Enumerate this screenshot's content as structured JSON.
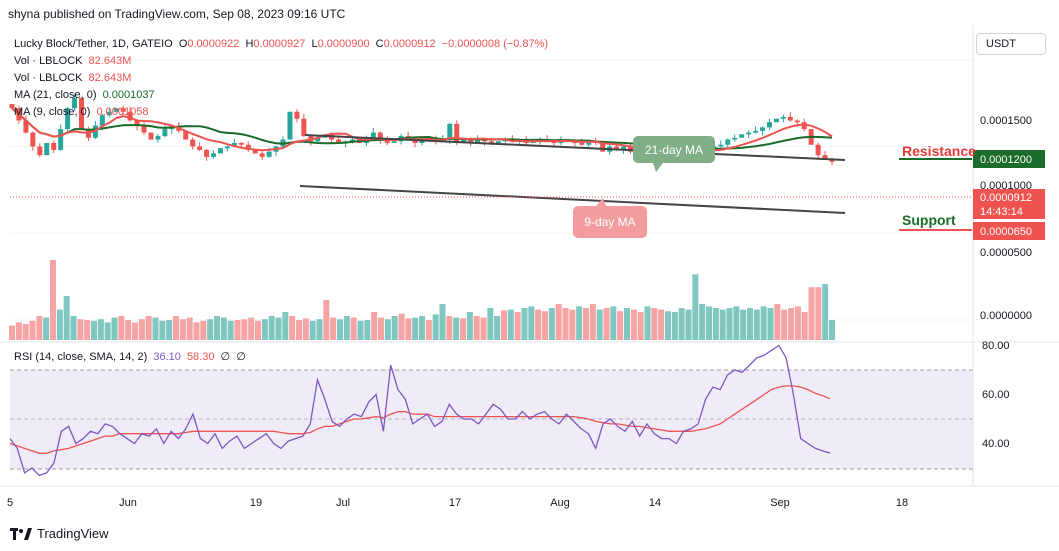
{
  "header": {
    "published": "shyna published on TradingView.com, Sep 08, 2023 09:16 UTC"
  },
  "legend": {
    "symbol": "Lucky Block/Tether, 1D, GATEIO",
    "ohlc": {
      "o_label": "O",
      "o": "0.0000922",
      "h_label": "H",
      "h": "0.0000927",
      "l_label": "L",
      "l": "0.0000900",
      "c_label": "C",
      "c": "0.0000912",
      "change": "−0.0000008 (−0.87%)"
    },
    "vol1": {
      "label": "Vol · LBLOCK",
      "value": "82.643M"
    },
    "vol2": {
      "label": "Vol · LBLOCK",
      "value": "82.643M"
    },
    "ma21": {
      "label": "MA (21, close, 0)",
      "value": "0.0001037"
    },
    "ma9": {
      "label": "MA (9, close, 0)",
      "value": "0.0001058"
    }
  },
  "currency": "USDT",
  "price_axis": [
    "0.0001500",
    "0.0001000",
    "0.0000500",
    "0.0000000"
  ],
  "rsi_axis": [
    "80.00",
    "60.00",
    "40.00"
  ],
  "rsi_legend": {
    "label": "RSI (14, close, SMA, 14, 2)",
    "rsi": "36.10",
    "sma": "58.30",
    "extra1": "∅",
    "extra2": "∅"
  },
  "badges": {
    "resistance_price": "0.0001200",
    "current_price": "0.0000912",
    "countdown": "14:43:14",
    "support_price": "0.0000650"
  },
  "annotations": {
    "resistance": "Resistance",
    "support": "Support",
    "ma21_note": "21-day MA",
    "ma9_note": "9-day MA"
  },
  "x_axis": [
    "5",
    "Jun",
    "19",
    "Jul",
    "17",
    "Aug",
    "14",
    "Sep",
    "18"
  ],
  "footer": {
    "brand": "TradingView"
  },
  "colors": {
    "up": "#26a69a",
    "down": "#ef5350",
    "ma21": "#1b6b2a",
    "ma9": "#ef5350",
    "rsi": "#7e57c2",
    "rsi_sma": "#ef5350",
    "channel": "#555555"
  },
  "chart_data": [
    {
      "type": "candlestick",
      "title": "Lucky Block/Tether, 1D, GATEIO",
      "ylim": [
        0,
        0.00017
      ],
      "x_range": [
        "2023-05-25",
        "2023-10-01"
      ],
      "series": [
        {
          "name": "MA (21, close, 0)",
          "last": 0.0001037
        },
        {
          "name": "MA (9, close, 0)",
          "last": 0.0001058
        }
      ],
      "levels": {
        "resistance": 0.00012,
        "support": 6.5e-05,
        "last": 9.12e-05
      },
      "closes": [
        0.000122,
        0.000115,
        0.000108,
        0.0001,
        9.5e-05,
        0.000102,
        9.8e-05,
        0.00011,
        0.000122,
        0.000128,
        0.00011,
        0.000105,
        0.000112,
        0.000118,
        0.00012,
        0.000122,
        0.00012,
        0.000115,
        0.000112,
        0.000108,
        0.000104,
        0.000106,
        0.00011,
        0.000112,
        0.000109,
        0.000104,
        0.0001,
        9.8e-05,
        9.4e-05,
        9.6e-05,
        9.9e-05,
        0.0001,
        0.000102,
        0.000101,
        9.8e-05,
        9.6e-05,
        9.4e-05,
        9.7e-05,
        0.0001,
        0.000104,
        0.00012,
        0.000116,
        0.000106,
        0.000103,
        0.000105,
        0.000107,
        0.000104,
        0.000102,
        0.000103,
        0.000104,
        0.000102,
        0.000105,
        0.000108,
        0.000104,
        0.000102,
        0.000103,
        0.000106,
        0.000104,
        0.000102,
        0.000104,
        0.000105,
        0.000103,
        0.000104,
        0.000113,
        0.000102,
        0.000104,
        0.000102,
        0.000104,
        0.000103,
        0.000102,
        0.000103,
        0.000104,
        0.000103,
        0.000104,
        0.000102,
        0.000103,
        0.000104,
        0.000103,
        0.000102,
        0.000104,
        0.000103,
        0.000102,
        0.000101,
        0.000103,
        0.000102,
        9.7e-05,
        0.0001,
        9.8e-05,
        0.0001,
        9.7e-05,
        9.9e-05,
        9.8e-05,
        9.7e-05,
        9.9e-05,
        9.7e-05,
        9.6e-05,
        9.7e-05,
        9.7e-05,
        9.7e-05,
        9.8e-05,
        9.9e-05,
        0.0001,
        0.000101,
        0.000104,
        0.000105,
        0.000107,
        0.000108,
        0.000109,
        0.000111,
        0.000114,
        0.000116,
        0.000117,
        0.000115,
        0.000114,
        0.00011,
        0.000101,
        9.5e-05,
        9.3e-05,
        9.12e-05
      ]
    },
    {
      "type": "bar",
      "title": "Vol · LBLOCK",
      "series": [
        {
          "name": "Vol · LBLOCK",
          "last": 82643000
        }
      ],
      "values": [
        0.18,
        0.22,
        0.2,
        0.24,
        0.3,
        0.28,
        1,
        0.38,
        0.55,
        0.3,
        0.26,
        0.25,
        0.24,
        0.26,
        0.22,
        0.28,
        0.3,
        0.25,
        0.22,
        0.26,
        0.3,
        0.28,
        0.24,
        0.25,
        0.3,
        0.26,
        0.28,
        0.22,
        0.24,
        0.26,
        0.3,
        0.28,
        0.24,
        0.25,
        0.26,
        0.28,
        0.24,
        0.26,
        0.3,
        0.28,
        0.35,
        0.3,
        0.25,
        0.27,
        0.24,
        0.26,
        0.5,
        0.28,
        0.26,
        0.3,
        0.28,
        0.24,
        0.25,
        0.35,
        0.28,
        0.26,
        0.3,
        0.33,
        0.27,
        0.28,
        0.3,
        0.25,
        0.32,
        0.45,
        0.3,
        0.28,
        0.27,
        0.35,
        0.3,
        0.28,
        0.4,
        0.3,
        0.37,
        0.38,
        0.35,
        0.4,
        0.42,
        0.38,
        0.36,
        0.4,
        0.45,
        0.4,
        0.38,
        0.42,
        0.4,
        0.45,
        0.38,
        0.4,
        0.42,
        0.36,
        0.4,
        0.38,
        0.35,
        0.42,
        0.4,
        0.38,
        0.36,
        0.35,
        0.4,
        0.38,
        0.82,
        0.45,
        0.42,
        0.4,
        0.38,
        0.4,
        0.42,
        0.38,
        0.4,
        0.38,
        0.42,
        0.4,
        0.45,
        0.38,
        0.4,
        0.42,
        0.35,
        0.66,
        0.66,
        0.7,
        0.25
      ],
      "ylim": [
        0,
        1
      ]
    },
    {
      "type": "line",
      "title": "RSI (14, close, SMA, 14, 2)",
      "ylim": [
        25,
        80
      ],
      "bands": [
        30,
        50,
        70
      ],
      "series": [
        {
          "name": "RSI",
          "last": 36.1,
          "values": [
            42,
            38,
            28,
            30,
            27,
            28,
            32,
            45,
            47,
            40,
            42,
            45,
            44,
            48,
            47,
            44,
            42,
            40,
            44,
            43,
            46,
            40,
            45,
            42,
            46,
            52,
            42,
            40,
            44,
            38,
            41,
            43,
            38,
            40,
            42,
            44,
            40,
            38,
            41,
            42,
            43,
            48,
            66,
            58,
            49,
            47,
            50,
            52,
            51,
            57,
            60,
            45,
            72,
            62,
            58,
            48,
            50,
            52,
            47,
            49,
            56,
            52,
            50,
            50,
            48,
            52,
            56,
            54,
            50,
            50,
            53,
            50,
            52,
            53,
            50,
            48,
            52,
            49,
            46,
            44,
            38,
            48,
            50,
            47,
            45,
            49,
            43,
            48,
            44,
            42,
            42,
            40,
            45,
            46,
            48,
            58,
            63,
            62,
            68,
            70,
            69,
            72,
            75,
            76,
            78,
            80,
            75,
            60,
            42,
            40,
            38,
            37,
            36.1
          ]
        },
        {
          "name": "SMA",
          "last": 58.3,
          "values": [
            40,
            39,
            38,
            37,
            36,
            36,
            37,
            37.5,
            38,
            39,
            40,
            41,
            42,
            43,
            43,
            44,
            44,
            44,
            44,
            44,
            44,
            44,
            44,
            44,
            44.5,
            45,
            45,
            45,
            45,
            45,
            45,
            45,
            45,
            45,
            45,
            45,
            45,
            44.5,
            44,
            44,
            44,
            44.5,
            46,
            47,
            47,
            48,
            49,
            50,
            50,
            50.5,
            51,
            50.5,
            52,
            53,
            53,
            52,
            52,
            52,
            51,
            51,
            51,
            51,
            51,
            51,
            51,
            51,
            51,
            51,
            51,
            51,
            51,
            51,
            51,
            51,
            51,
            51,
            51,
            51,
            50.5,
            50,
            49,
            48.5,
            48,
            48,
            47.5,
            47,
            47,
            46.5,
            46,
            45.5,
            45,
            45,
            45,
            45,
            45.5,
            46,
            47,
            48,
            50,
            52,
            54,
            56,
            58,
            60,
            62,
            63,
            63.5,
            63.5,
            63,
            62,
            60.5,
            59.5,
            58.3
          ]
        }
      ]
    }
  ]
}
